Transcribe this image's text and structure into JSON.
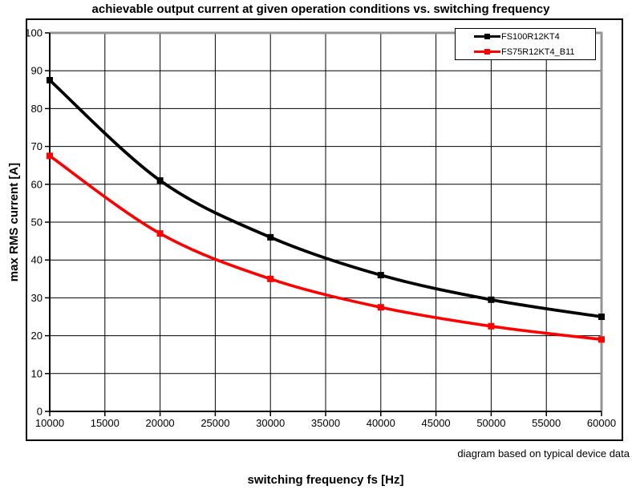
{
  "chart_data": {
    "type": "line",
    "title": "achievable output current at given operation conditions vs. switching frequency",
    "xlabel": "switching frequency fs [Hz]",
    "ylabel": "max RMS current [A]",
    "note": "diagram based on typical device data",
    "x": [
      10000,
      20000,
      30000,
      40000,
      50000,
      60000
    ],
    "x_ticks": [
      10000,
      15000,
      20000,
      25000,
      30000,
      35000,
      40000,
      45000,
      50000,
      55000,
      60000
    ],
    "y_ticks": [
      0,
      10,
      20,
      30,
      40,
      50,
      60,
      70,
      80,
      90,
      100
    ],
    "xlim": [
      10000,
      60000
    ],
    "ylim": [
      0,
      100
    ],
    "grid": true,
    "smooth": true,
    "legend_position": "top-right",
    "marker": "square",
    "marker_size": 8,
    "series": [
      {
        "name": "FS100R12KT4",
        "color": "#000000",
        "line_width": 3.8,
        "values": [
          87.5,
          61,
          46,
          36,
          29.5,
          25
        ]
      },
      {
        "name": "FS75R12KT4_B11",
        "color": "#ff0000",
        "line_width": 3.6,
        "values": [
          67.5,
          47,
          35,
          27.5,
          22.5,
          19
        ]
      }
    ],
    "colors": {
      "plot_border": "#949494",
      "axis": "#000000",
      "gridline": "#000000",
      "background": "#ffffff"
    }
  }
}
